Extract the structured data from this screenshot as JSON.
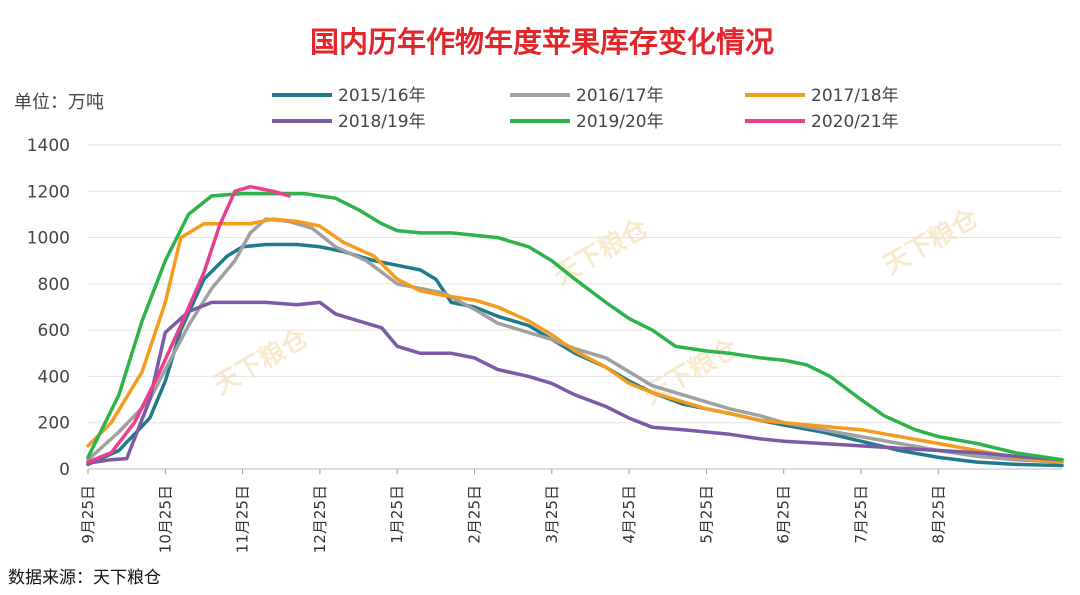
{
  "chart_data": {
    "type": "line",
    "title": "国内历年作物年度苹果库存变化情况",
    "unit_label": "单位：万吨",
    "source": "数据来源：天下粮仓",
    "watermark": "天下粮仓",
    "x_ticks": [
      "9月25日",
      "10月25日",
      "11月25日",
      "12月25日",
      "1月25日",
      "2月25日",
      "3月25日",
      "4月25日",
      "5月25日",
      "6月25日",
      "7月25日",
      "8月25日"
    ],
    "y_ticks": [
      0,
      200,
      400,
      600,
      800,
      1000,
      1200,
      1400
    ],
    "ylim": [
      0,
      1400
    ],
    "x_range_months": [
      0,
      12.6
    ],
    "grid": true,
    "legend_position": "top",
    "series": [
      {
        "name": "2015/16年",
        "color": "#1f7a8c",
        "points": [
          [
            0,
            20
          ],
          [
            0.4,
            80
          ],
          [
            0.8,
            220
          ],
          [
            1.0,
            380
          ],
          [
            1.2,
            600
          ],
          [
            1.5,
            820
          ],
          [
            1.8,
            920
          ],
          [
            2.0,
            960
          ],
          [
            2.3,
            970
          ],
          [
            2.7,
            970
          ],
          [
            3.0,
            960
          ],
          [
            3.3,
            940
          ],
          [
            3.7,
            900
          ],
          [
            4.0,
            880
          ],
          [
            4.3,
            860
          ],
          [
            4.5,
            820
          ],
          [
            4.7,
            720
          ],
          [
            5.0,
            700
          ],
          [
            5.3,
            660
          ],
          [
            5.7,
            620
          ],
          [
            6.0,
            560
          ],
          [
            6.3,
            500
          ],
          [
            6.7,
            440
          ],
          [
            7.0,
            380
          ],
          [
            7.3,
            330
          ],
          [
            7.7,
            280
          ],
          [
            8.0,
            260
          ],
          [
            8.3,
            240
          ],
          [
            8.7,
            210
          ],
          [
            9.0,
            190
          ],
          [
            9.5,
            160
          ],
          [
            10.0,
            120
          ],
          [
            10.5,
            80
          ],
          [
            11.0,
            50
          ],
          [
            11.5,
            30
          ],
          [
            12.0,
            20
          ],
          [
            12.6,
            15
          ]
        ]
      },
      {
        "name": "2016/17年",
        "color": "#a0a0a0",
        "points": [
          [
            0,
            40
          ],
          [
            0.4,
            160
          ],
          [
            0.8,
            300
          ],
          [
            1.0,
            430
          ],
          [
            1.3,
            620
          ],
          [
            1.6,
            780
          ],
          [
            1.9,
            900
          ],
          [
            2.1,
            1020
          ],
          [
            2.3,
            1080
          ],
          [
            2.6,
            1070
          ],
          [
            2.9,
            1040
          ],
          [
            3.2,
            960
          ],
          [
            3.6,
            900
          ],
          [
            4.0,
            800
          ],
          [
            4.3,
            780
          ],
          [
            4.6,
            760
          ],
          [
            5.0,
            690
          ],
          [
            5.3,
            630
          ],
          [
            5.7,
            590
          ],
          [
            6.0,
            560
          ],
          [
            6.3,
            520
          ],
          [
            6.7,
            480
          ],
          [
            7.0,
            420
          ],
          [
            7.3,
            360
          ],
          [
            7.7,
            320
          ],
          [
            8.0,
            290
          ],
          [
            8.3,
            260
          ],
          [
            8.7,
            230
          ],
          [
            9.0,
            200
          ],
          [
            9.5,
            170
          ],
          [
            10.0,
            140
          ],
          [
            10.5,
            110
          ],
          [
            11.0,
            80
          ],
          [
            11.5,
            55
          ],
          [
            12.0,
            40
          ],
          [
            12.6,
            30
          ]
        ]
      },
      {
        "name": "2017/18年",
        "color": "#f39c1e",
        "points": [
          [
            0,
            100
          ],
          [
            0.3,
            200
          ],
          [
            0.7,
            420
          ],
          [
            1.0,
            720
          ],
          [
            1.2,
            1000
          ],
          [
            1.5,
            1060
          ],
          [
            1.8,
            1060
          ],
          [
            2.1,
            1060
          ],
          [
            2.4,
            1080
          ],
          [
            2.7,
            1070
          ],
          [
            3.0,
            1050
          ],
          [
            3.3,
            980
          ],
          [
            3.7,
            920
          ],
          [
            4.0,
            820
          ],
          [
            4.3,
            770
          ],
          [
            4.6,
            750
          ],
          [
            5.0,
            730
          ],
          [
            5.3,
            700
          ],
          [
            5.7,
            640
          ],
          [
            6.0,
            580
          ],
          [
            6.3,
            510
          ],
          [
            6.7,
            440
          ],
          [
            7.0,
            370
          ],
          [
            7.3,
            330
          ],
          [
            7.7,
            290
          ],
          [
            8.0,
            260
          ],
          [
            8.3,
            240
          ],
          [
            8.7,
            210
          ],
          [
            9.0,
            200
          ],
          [
            9.5,
            185
          ],
          [
            10.0,
            170
          ],
          [
            10.5,
            140
          ],
          [
            11.0,
            110
          ],
          [
            11.5,
            80
          ],
          [
            12.0,
            50
          ],
          [
            12.6,
            30
          ]
        ]
      },
      {
        "name": "2018/19年",
        "color": "#7b5aa6",
        "points": [
          [
            0,
            25
          ],
          [
            0.3,
            40
          ],
          [
            0.5,
            45
          ],
          [
            0.8,
            300
          ],
          [
            1.0,
            590
          ],
          [
            1.3,
            680
          ],
          [
            1.6,
            720
          ],
          [
            1.9,
            720
          ],
          [
            2.3,
            720
          ],
          [
            2.7,
            710
          ],
          [
            3.0,
            720
          ],
          [
            3.2,
            670
          ],
          [
            3.5,
            640
          ],
          [
            3.8,
            610
          ],
          [
            4.0,
            530
          ],
          [
            4.3,
            500
          ],
          [
            4.7,
            500
          ],
          [
            5.0,
            480
          ],
          [
            5.3,
            430
          ],
          [
            5.7,
            400
          ],
          [
            6.0,
            370
          ],
          [
            6.3,
            320
          ],
          [
            6.7,
            270
          ],
          [
            7.0,
            220
          ],
          [
            7.3,
            180
          ],
          [
            7.7,
            170
          ],
          [
            8.0,
            160
          ],
          [
            8.3,
            150
          ],
          [
            8.7,
            130
          ],
          [
            9.0,
            120
          ],
          [
            9.5,
            110
          ],
          [
            10.0,
            100
          ],
          [
            10.5,
            90
          ],
          [
            11.0,
            80
          ],
          [
            11.5,
            70
          ],
          [
            12.0,
            55
          ],
          [
            12.6,
            40
          ]
        ]
      },
      {
        "name": "2019/20年",
        "color": "#2db34a",
        "points": [
          [
            0,
            50
          ],
          [
            0.4,
            320
          ],
          [
            0.7,
            640
          ],
          [
            1.0,
            900
          ],
          [
            1.3,
            1100
          ],
          [
            1.6,
            1180
          ],
          [
            2.0,
            1190
          ],
          [
            2.4,
            1190
          ],
          [
            2.8,
            1190
          ],
          [
            3.2,
            1170
          ],
          [
            3.5,
            1120
          ],
          [
            3.8,
            1060
          ],
          [
            4.0,
            1030
          ],
          [
            4.3,
            1020
          ],
          [
            4.7,
            1020
          ],
          [
            5.0,
            1010
          ],
          [
            5.3,
            1000
          ],
          [
            5.7,
            960
          ],
          [
            6.0,
            900
          ],
          [
            6.3,
            820
          ],
          [
            6.7,
            720
          ],
          [
            7.0,
            650
          ],
          [
            7.3,
            600
          ],
          [
            7.6,
            530
          ],
          [
            8.0,
            510
          ],
          [
            8.3,
            500
          ],
          [
            8.7,
            480
          ],
          [
            9.0,
            470
          ],
          [
            9.3,
            450
          ],
          [
            9.6,
            400
          ],
          [
            10.0,
            300
          ],
          [
            10.3,
            230
          ],
          [
            10.7,
            170
          ],
          [
            11.0,
            140
          ],
          [
            11.5,
            110
          ],
          [
            12.0,
            70
          ],
          [
            12.6,
            40
          ]
        ]
      },
      {
        "name": "2020/21年",
        "color": "#e8408f",
        "points": [
          [
            0,
            30
          ],
          [
            0.3,
            70
          ],
          [
            0.6,
            200
          ],
          [
            0.9,
            400
          ],
          [
            1.2,
            620
          ],
          [
            1.5,
            850
          ],
          [
            1.7,
            1050
          ],
          [
            1.9,
            1200
          ],
          [
            2.1,
            1220
          ],
          [
            2.4,
            1200
          ],
          [
            2.6,
            1180
          ]
        ]
      }
    ]
  }
}
